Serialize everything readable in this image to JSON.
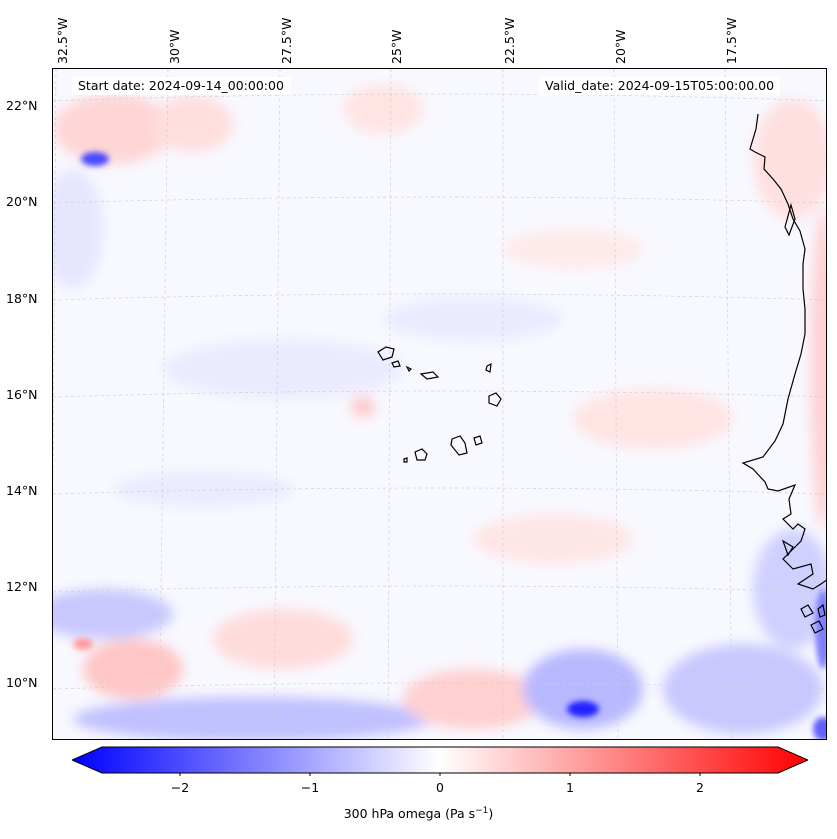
{
  "map": {
    "start_date": "Start date: 2024-09-14_00:00:00",
    "valid_date": "Valid_date: 2024-09-15T05:00:00.00",
    "lon_labels": [
      "32.5°W",
      "30°W",
      "27.5°W",
      "25°W",
      "22.5°W",
      "20°W",
      "17.5°W"
    ],
    "lat_labels": [
      "22°N",
      "20°N",
      "18°N",
      "16°N",
      "14°N",
      "12°N",
      "10°N"
    ],
    "field_palette": {
      "negative": "#0000ff",
      "neutral": "#f8f8ff",
      "positive": "#ff0000",
      "coastline": "#000000",
      "gridline": "#cccccc"
    }
  },
  "colorbar": {
    "tick_labels": [
      "−2",
      "−1",
      "0",
      "1",
      "2"
    ],
    "tick_values": [
      -2,
      -1,
      0,
      1,
      2
    ],
    "range": [
      -2.6,
      2.6
    ],
    "label_prefix": "300 hPa omega (Pa s",
    "label_exponent": "−1",
    "label_suffix": ")"
  }
}
